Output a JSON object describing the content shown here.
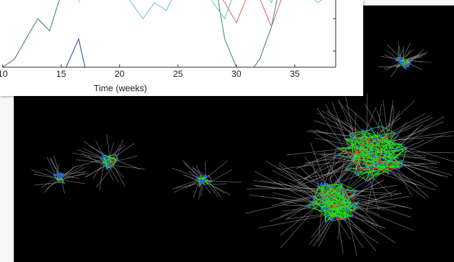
{
  "chart_data": {
    "type": "line",
    "title": "",
    "xlabel": "Time (weeks)",
    "ylabel": "",
    "xlim": [
      10,
      38.5
    ],
    "ylim": [
      0,
      10
    ],
    "xticks": [
      10,
      15,
      20,
      25,
      30,
      35
    ],
    "xtick_labels": [
      "10",
      "15",
      "20",
      "25",
      "30",
      "35"
    ],
    "yticks": [
      2,
      6,
      10
    ],
    "grid": false,
    "legend": "none",
    "series": [
      {
        "color": "#3f8a6a",
        "x": [
          10,
          11,
          12,
          13,
          14,
          15,
          15.5,
          16,
          17,
          18,
          19,
          20,
          21,
          22,
          23,
          24,
          25,
          26,
          27,
          28,
          29,
          30,
          31,
          32,
          33,
          34,
          35,
          36,
          37,
          38
        ],
        "y": [
          0,
          1,
          3.5,
          6,
          4.5,
          9,
          12,
          12,
          12,
          12,
          12,
          12,
          12,
          12,
          12,
          12,
          12,
          12,
          12,
          12,
          3.5,
          0,
          -1,
          1,
          5,
          12,
          12,
          12,
          12,
          12
        ]
      },
      {
        "color": "#3344bb",
        "x": [
          14.5,
          16.5,
          17.5
        ],
        "y": [
          -3,
          3.5,
          -3
        ]
      },
      {
        "color": "#e06a6a",
        "x": [
          20.5,
          22,
          24,
          26,
          27,
          28,
          29,
          30,
          31,
          32,
          33,
          34,
          35
        ],
        "y": [
          11,
          9,
          11,
          10,
          10.5,
          10,
          8,
          5.5,
          9,
          8.5,
          5,
          9,
          10
        ]
      },
      {
        "color": "#6cc4c4",
        "x": [
          16.5,
          17,
          18,
          19,
          20,
          21,
          22,
          23,
          24,
          25,
          26,
          27,
          28,
          29,
          30,
          31,
          32,
          33,
          34,
          35,
          36,
          37,
          38
        ],
        "y": [
          8,
          11,
          9,
          11,
          10,
          8,
          6,
          8,
          7,
          10,
          9,
          11,
          8,
          6,
          10,
          11,
          10,
          8,
          11,
          10,
          9,
          8,
          9
        ]
      }
    ]
  },
  "network": {
    "background": "#000000",
    "node_color": "#2255ff",
    "edge_colors": [
      "#22dd22",
      "#ee2222"
    ],
    "spoke_color": "#a8a8a8",
    "clusters": [
      {
        "name": "cluster-top-right",
        "size": 18,
        "spokes": 26
      },
      {
        "name": "cluster-left",
        "size": 14,
        "spokes": 22
      },
      {
        "name": "cluster-center-left",
        "size": 18,
        "spokes": 28
      },
      {
        "name": "cluster-center",
        "size": 14,
        "spokes": 26
      },
      {
        "name": "cluster-large-upper",
        "size": 70,
        "spokes": 90
      },
      {
        "name": "cluster-large-lower",
        "size": 55,
        "spokes": 80
      }
    ]
  }
}
